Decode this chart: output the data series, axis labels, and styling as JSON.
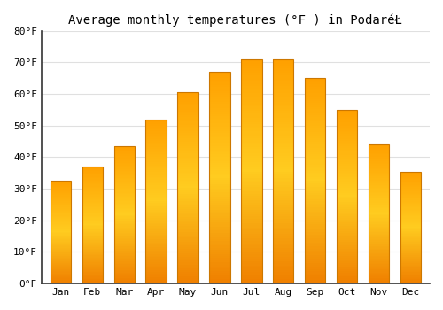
{
  "title": "Average monthly temperatures (°F ) in PodaréŁ",
  "months": [
    "Jan",
    "Feb",
    "Mar",
    "Apr",
    "May",
    "Jun",
    "Jul",
    "Aug",
    "Sep",
    "Oct",
    "Nov",
    "Dec"
  ],
  "values": [
    32.5,
    37.0,
    43.5,
    52.0,
    60.5,
    67.0,
    71.0,
    71.0,
    65.0,
    55.0,
    44.0,
    35.5
  ],
  "bar_color_main": "#FFA500",
  "bar_color_light": "#FFD060",
  "bar_edge_color": "#CC7700",
  "background_color": "#FFFFFF",
  "grid_color": "#E0E0E0",
  "ylim": [
    0,
    80
  ],
  "yticks": [
    0,
    10,
    20,
    30,
    40,
    50,
    60,
    70,
    80
  ],
  "ytick_labels": [
    "0°F",
    "10°F",
    "20°F",
    "30°F",
    "40°F",
    "50°F",
    "60°F",
    "70°F",
    "80°F"
  ],
  "title_fontsize": 10,
  "tick_fontsize": 8,
  "font_family": "monospace"
}
